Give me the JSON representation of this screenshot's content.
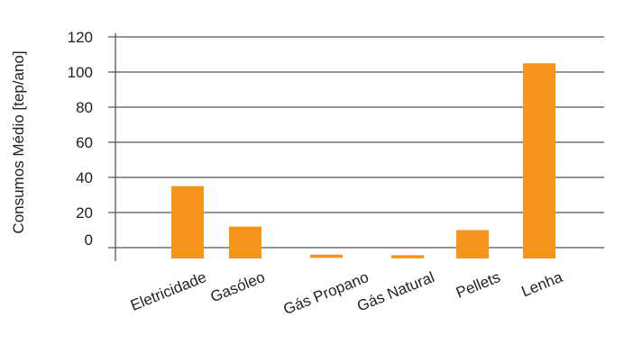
{
  "chart_data": {
    "type": "bar",
    "title": "",
    "xlabel": "",
    "ylabel": "Consumos Médio [tep/ano]",
    "categories": [
      "Eletricidade",
      "Gasóleo",
      "Gás Propano",
      "Gás Natural",
      "Pellets",
      "Lenha"
    ],
    "values": [
      35,
      12,
      -3,
      -4,
      10,
      105
    ],
    "ylim": [
      -5,
      120
    ],
    "y_ticks": [
      0,
      20,
      40,
      60,
      80,
      100,
      120
    ],
    "grid": true,
    "legend": "none",
    "bar_color": "#F7941D",
    "grid_color": "#555555"
  }
}
